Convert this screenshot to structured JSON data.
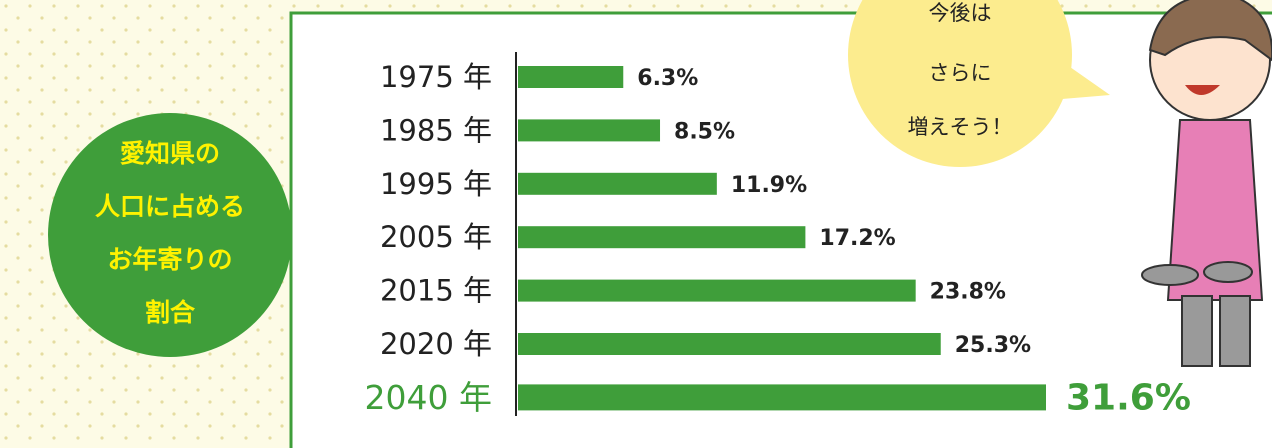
{
  "chart_data": {
    "type": "bar",
    "orientation": "horizontal",
    "title": [
      "愛知県の",
      "人口に占める",
      "お年寄りの",
      "割合"
    ],
    "annotation": [
      "今後は",
      "さらに",
      "増えそう！"
    ],
    "categories": [
      "1975 年",
      "1985 年",
      "1995 年",
      "2005 年",
      "2015 年",
      "2020 年",
      "2040 年"
    ],
    "values": [
      6.3,
      8.5,
      11.9,
      17.2,
      23.8,
      25.3,
      31.6
    ],
    "value_labels": [
      "6.3%",
      "8.5%",
      "11.9%",
      "17.2%",
      "23.8%",
      "25.3%",
      "31.6%"
    ],
    "color": "#3f9e3a"
  }
}
